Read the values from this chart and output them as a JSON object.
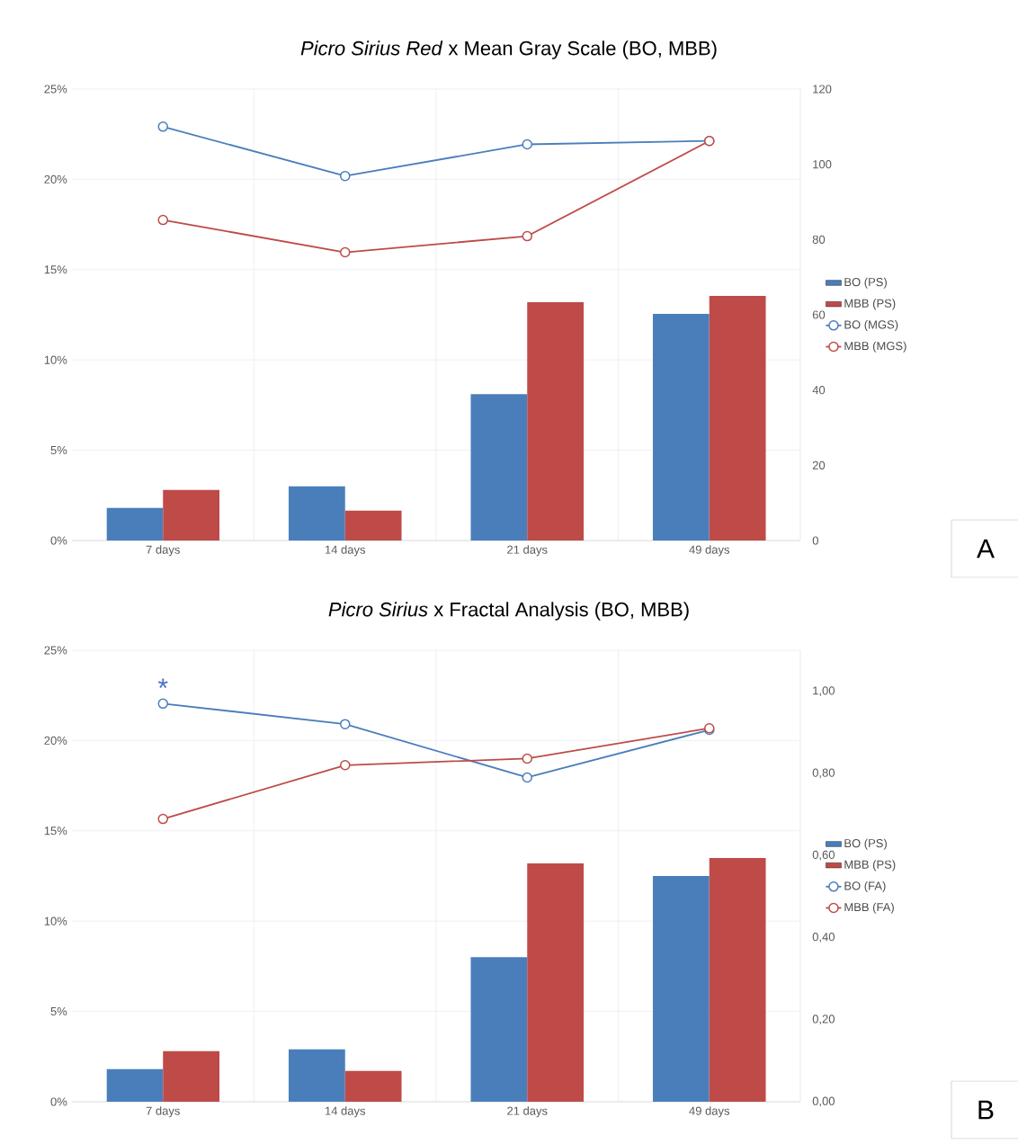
{
  "chart_data": [
    {
      "type": "bar",
      "title": "*Picro Sirius Red* x Mean Gray Scale (BO, MBB)",
      "categories": [
        "7 days",
        "14 days",
        "21 days",
        "49 days"
      ],
      "series": [
        {
          "name": "BO (PS)",
          "color": "#4a7ebb",
          "values": [
            1.8,
            3.0,
            8.1,
            12.55
          ]
        },
        {
          "name": "MBB (PS)",
          "color": "#be4b48",
          "values": [
            2.8,
            1.65,
            13.2,
            13.55
          ]
        },
        {
          "name": "BO (MGS)",
          "type": "line",
          "axis": "y2",
          "color": "#4a7ebb",
          "values": [
            110,
            96.9,
            105.3,
            106.2
          ]
        },
        {
          "name": "MBB (MGS)",
          "type": "line",
          "axis": "y2",
          "color": "#be4b48",
          "values": [
            85.2,
            76.6,
            80.9,
            106.2
          ]
        }
      ],
      "ylim": [
        0,
        25
      ],
      "yticks": [
        {
          "value": 0,
          "label": "0%"
        },
        {
          "value": 5,
          "label": "5%"
        },
        {
          "value": 10,
          "label": "10%"
        },
        {
          "value": 15,
          "label": "15%"
        },
        {
          "value": 20,
          "label": "20%"
        },
        {
          "value": 25,
          "label": "25%"
        }
      ],
      "y2lim": [
        0,
        120
      ],
      "y2ticks": [
        0,
        20,
        40,
        60,
        80,
        100,
        120
      ],
      "grid": true,
      "legend": "right",
      "marker": "circle",
      "annotations": [
        "A"
      ]
    },
    {
      "type": "bar",
      "title": "*Picro Sirius* x Fractal Analysis (BO, MBB)",
      "categories": [
        "7 days",
        "14 days",
        "21 days",
        "49 days"
      ],
      "series": [
        {
          "name": "BO (PS)",
          "color": "#4a7ebb",
          "values": [
            1.8,
            2.9,
            8.0,
            12.5
          ]
        },
        {
          "name": "MBB (PS)",
          "color": "#be4b48",
          "values": [
            2.8,
            1.7,
            13.2,
            13.5
          ]
        },
        {
          "name": "BO (FA)",
          "type": "line",
          "axis": "y2",
          "color": "#4a7ebb",
          "values": [
            0.97,
            0.92,
            0.79,
            0.906
          ]
        },
        {
          "name": "MBB (FA)",
          "type": "line",
          "axis": "y2",
          "color": "#be4b48",
          "values": [
            0.689,
            0.82,
            0.836,
            0.91
          ]
        }
      ],
      "ylim": [
        0,
        25
      ],
      "yticks": [
        {
          "value": 0,
          "label": "0%"
        },
        {
          "value": 5,
          "label": "5%"
        },
        {
          "value": 10,
          "label": "10%"
        },
        {
          "value": 15,
          "label": "15%"
        },
        {
          "value": 20,
          "label": "20%"
        },
        {
          "value": 25,
          "label": "25%"
        }
      ],
      "y2lim": [
        0,
        1.1
      ],
      "y2ticks": [
        {
          "value": 0,
          "label": "0,00"
        },
        {
          "value": 0.2,
          "label": "0,20"
        },
        {
          "value": 0.4,
          "label": "0,40"
        },
        {
          "value": 0.6,
          "label": "0,60"
        },
        {
          "value": 0.8,
          "label": "0,80"
        },
        {
          "value": 1.0,
          "label": "1,00"
        }
      ],
      "grid": true,
      "legend": "right",
      "marker": "circle",
      "annotations": [
        "*",
        "B"
      ]
    }
  ]
}
